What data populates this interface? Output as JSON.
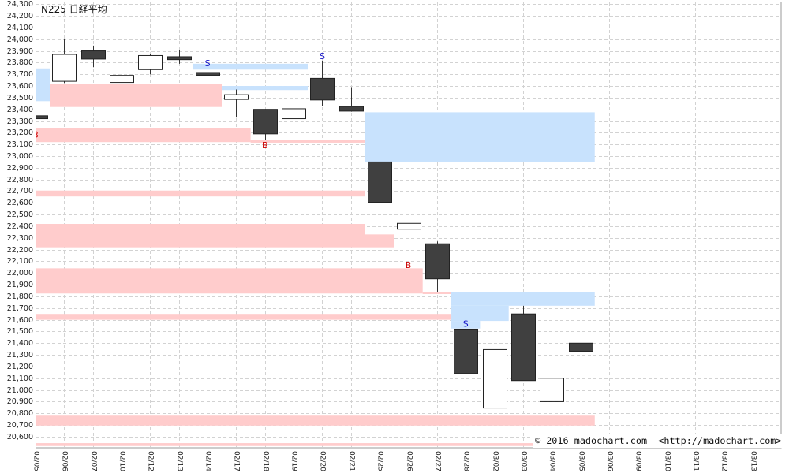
{
  "chart_data": {
    "type": "bar",
    "variant": "candlestick",
    "title": "N225 日経平均",
    "grid": true,
    "ylim": [
      20505,
      24315
    ],
    "x": [
      "02/05",
      "02/06",
      "02/07",
      "02/10",
      "02/12",
      "02/13",
      "02/14",
      "02/17",
      "02/18",
      "02/19",
      "02/20",
      "02/21",
      "02/25",
      "02/26",
      "02/27",
      "02/28",
      "03/02",
      "03/03",
      "03/04",
      "03/05",
      "03/06",
      "03/09",
      "03/10",
      "03/11",
      "03/12",
      "03/13"
    ],
    "yticks": [
      "24,300",
      "24,200",
      "24,100",
      "24,000",
      "23,900",
      "23,800",
      "23,700",
      "23,600",
      "23,500",
      "23,400",
      "23,300",
      "23,200",
      "23,100",
      "23,000",
      "22,900",
      "22,800",
      "22,700",
      "22,600",
      "22,500",
      "22,400",
      "22,300",
      "22,200",
      "22,100",
      "22,000",
      "21,900",
      "21,800",
      "21,700",
      "21,600",
      "21,500",
      "21,400",
      "21,300",
      "21,200",
      "21,100",
      "21,000",
      "20,900",
      "20,800",
      "20,700",
      "20,600"
    ],
    "candles": [
      {
        "date": "02/05",
        "open": 23345,
        "high": 23350,
        "low": 23225,
        "close": 23320
      },
      {
        "date": "02/06",
        "open": 23640,
        "high": 24000,
        "low": 23625,
        "close": 23870
      },
      {
        "date": "02/07",
        "open": 23900,
        "high": 23945,
        "low": 23760,
        "close": 23830
      },
      {
        "date": "02/10",
        "open": 23630,
        "high": 23780,
        "low": 23625,
        "close": 23690
      },
      {
        "date": "02/12",
        "open": 23740,
        "high": 23870,
        "low": 23700,
        "close": 23860
      },
      {
        "date": "02/13",
        "open": 23850,
        "high": 23910,
        "low": 23790,
        "close": 23825
      },
      {
        "date": "02/14",
        "open": 23715,
        "high": 23750,
        "low": 23600,
        "close": 23690
      },
      {
        "date": "02/17",
        "open": 23485,
        "high": 23570,
        "low": 23330,
        "close": 23525
      },
      {
        "date": "02/18",
        "open": 23400,
        "high": 23400,
        "low": 23135,
        "close": 23190
      },
      {
        "date": "02/19",
        "open": 23320,
        "high": 23480,
        "low": 23235,
        "close": 23405
      },
      {
        "date": "02/20",
        "open": 23665,
        "high": 23810,
        "low": 23425,
        "close": 23480
      },
      {
        "date": "02/21",
        "open": 23425,
        "high": 23590,
        "low": 23380,
        "close": 23385
      },
      {
        "date": "02/25",
        "open": 22950,
        "high": 22950,
        "low": 22330,
        "close": 22605
      },
      {
        "date": "02/26",
        "open": 22375,
        "high": 22460,
        "low": 22110,
        "close": 22425
      },
      {
        "date": "02/27",
        "open": 22250,
        "high": 22270,
        "low": 21840,
        "close": 21950
      },
      {
        "date": "02/28",
        "open": 21520,
        "high": 21520,
        "low": 20910,
        "close": 21140
      },
      {
        "date": "03/02",
        "open": 20845,
        "high": 21665,
        "low": 20835,
        "close": 21345
      },
      {
        "date": "03/03",
        "open": 21650,
        "high": 21720,
        "low": 21080,
        "close": 21080
      },
      {
        "date": "03/04",
        "open": 20900,
        "high": 21245,
        "low": 20860,
        "close": 21100
      },
      {
        "date": "03/05",
        "open": 21400,
        "high": 21400,
        "low": 21215,
        "close": 21330
      }
    ],
    "zones": [
      {
        "color": "blue",
        "from": "02/05",
        "to": "02/05",
        "low": 23470,
        "high": 23750
      },
      {
        "color": "pink",
        "from": "02/06",
        "to": "02/14",
        "low": 23420,
        "high": 23615
      },
      {
        "color": "blue",
        "from": "02/14",
        "to": "02/19",
        "low": 23740,
        "high": 23790
      },
      {
        "color": "blue",
        "from": "02/17",
        "to": "02/19",
        "low": 23565,
        "high": 23600
      },
      {
        "color": "pink",
        "from": "02/05",
        "to": "02/17",
        "low": 23120,
        "high": 23240
      },
      {
        "color": "pink",
        "from": "02/18",
        "to": "02/21",
        "low": 23115,
        "high": 23135
      },
      {
        "color": "blue",
        "from": "02/25",
        "to": "03/05",
        "low": 22950,
        "high": 23375
      },
      {
        "color": "pink",
        "from": "02/05",
        "to": "02/21",
        "low": 22655,
        "high": 22705
      },
      {
        "color": "pink",
        "from": "02/05",
        "to": "02/21",
        "low": 22220,
        "high": 22420
      },
      {
        "color": "pink",
        "from": "02/25",
        "to": "02/25",
        "low": 22220,
        "high": 22330
      },
      {
        "color": "pink",
        "from": "02/05",
        "to": "02/26",
        "low": 21825,
        "high": 22040
      },
      {
        "color": "pink",
        "from": "02/27",
        "to": "02/27",
        "low": 21820,
        "high": 21840
      },
      {
        "color": "blue",
        "from": "02/28",
        "to": "03/05",
        "low": 21720,
        "high": 21840
      },
      {
        "color": "blue",
        "from": "02/28",
        "to": "03/02",
        "low": 21590,
        "high": 21720
      },
      {
        "color": "blue",
        "from": "02/28",
        "to": "02/28",
        "low": 21525,
        "high": 21590
      },
      {
        "color": "pink",
        "from": "02/05",
        "to": "02/27",
        "low": 21600,
        "high": 21650
      },
      {
        "color": "pink",
        "from": "02/05",
        "to": "03/05",
        "low": 20695,
        "high": 20780
      },
      {
        "color": "pink",
        "from": "02/05",
        "to": "03/05",
        "low": 20520,
        "high": 20545
      }
    ],
    "signals": [
      {
        "date": "02/05",
        "label": "B"
      },
      {
        "date": "02/14",
        "label": "S"
      },
      {
        "date": "02/18",
        "label": "B"
      },
      {
        "date": "02/20",
        "label": "S"
      },
      {
        "date": "02/26",
        "label": "B"
      },
      {
        "date": "02/28",
        "label": "S"
      }
    ]
  },
  "colors": {
    "zone_pink": "#ffcccc",
    "zone_blue": "#c8e2fd",
    "candle_dark": "#404040",
    "candle_light": "#ffffff",
    "candle_outline": "#222222",
    "wick": "#333333",
    "signal_B": "#cc0000",
    "signal_S": "#1414c8",
    "grid": "#d2d2d2",
    "border": "#999999"
  },
  "copyright": "© 2016 madochart.com  <http://madochart.com>"
}
